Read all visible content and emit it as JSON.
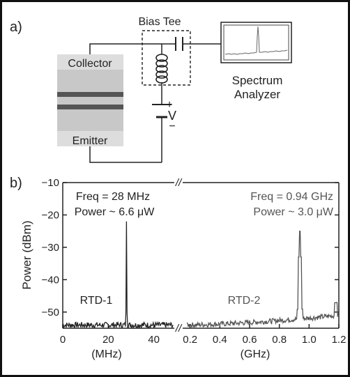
{
  "panel_a": {
    "label": "a)",
    "bias_tee_label": "Bias Tee",
    "collector_label": "Collector",
    "emitter_label": "Emitter",
    "analyzer_label_line1": "Spectrum",
    "analyzer_label_line2": "Analyzer",
    "plus_sign": "+",
    "voltage_label": "V",
    "minus_sign": "−"
  },
  "panel_b": {
    "label": "b)",
    "annotation_left_line1": "Freq = 28 MHz",
    "annotation_left_line2": "Power ~ 6.6 μW",
    "annotation_right_line1": "Freq = 0.94 GHz",
    "annotation_right_line2": "Power ~ 3.0 μW",
    "series_left_label": "RTD-1",
    "series_right_label": "RTD-2",
    "y_axis_label": "Power (dBm)",
    "x_unit_left": "(MHz)",
    "x_unit_right": "(GHz)",
    "axis_break_mark": "//"
  },
  "colors": {
    "rtd1_trace": "#222222",
    "rtd2_trace": "#555555",
    "device_light": "#dddddd",
    "device_mid": "#c8c8c8",
    "device_dark_band": "#555555"
  },
  "chart_data": {
    "type": "line",
    "ylabel": "Power (dBm)",
    "ylim": [
      -55,
      -10
    ],
    "yticks": [
      "−10",
      "−20",
      "−30",
      "−40",
      "−50"
    ],
    "panels": [
      {
        "name": "left",
        "x_unit": "(MHz)",
        "xlim": [
          0,
          49
        ],
        "xticks": [
          "0",
          "20",
          "40"
        ],
        "series": [
          {
            "name": "RTD-1",
            "noise_floor_dbm": -54,
            "peak": {
              "x": 28,
              "y": -22
            }
          }
        ]
      },
      {
        "name": "right",
        "x_unit": "(GHz)",
        "xlim": [
          0.15,
          1.2
        ],
        "xticks": [
          "0.2",
          "0.4",
          "0.6",
          "0.8",
          "1.0",
          "1.2"
        ],
        "series": [
          {
            "name": "RTD-2",
            "noise_floor_dbm": [
              -54,
              -51
            ],
            "peak": {
              "x": 0.94,
              "y": -25
            }
          }
        ]
      }
    ]
  }
}
